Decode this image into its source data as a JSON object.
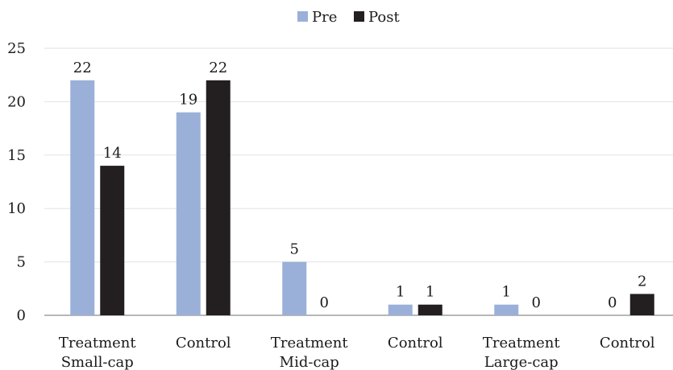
{
  "chart_data": {
    "type": "bar",
    "categories": [
      [
        "Treatment",
        "Small-cap"
      ],
      [
        "Control"
      ],
      [
        "Treatment",
        "Mid-cap"
      ],
      [
        "Control"
      ],
      [
        "Treatment",
        "Large-cap"
      ],
      [
        "Control"
      ]
    ],
    "series": [
      {
        "name": "Pre",
        "color": "#9ab0d8",
        "values": [
          22,
          19,
          5,
          1,
          1,
          0
        ]
      },
      {
        "name": "Post",
        "color": "#231f20",
        "values": [
          14,
          22,
          0,
          1,
          0,
          2
        ]
      }
    ],
    "ylim": [
      0,
      25
    ],
    "yticks": [
      0,
      5,
      10,
      15,
      20,
      25
    ],
    "grid": true,
    "legend_position": "top-center",
    "title": "",
    "xlabel": "",
    "ylabel": ""
  }
}
